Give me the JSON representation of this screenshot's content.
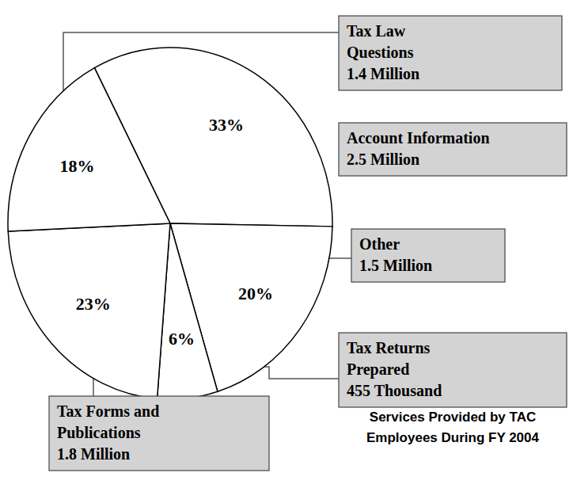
{
  "chart_data": {
    "type": "pie",
    "title": "Services Provided by TAC Employees During FY 2004",
    "categories": [
      "Account Information",
      "Other",
      "Tax Returns Prepared",
      "Tax Forms and Publications",
      "Tax Law Questions"
    ],
    "values": [
      33,
      20,
      6,
      23,
      18
    ],
    "value_labels": [
      "33%",
      "20%",
      "6%",
      "23%",
      "18%"
    ],
    "volume_labels": [
      "2.5 Million",
      "1.5 Million",
      "455 Thousand",
      "1.8 Million",
      "1.4 Million"
    ],
    "data_labels": true,
    "color": "#ffffff"
  }
}
